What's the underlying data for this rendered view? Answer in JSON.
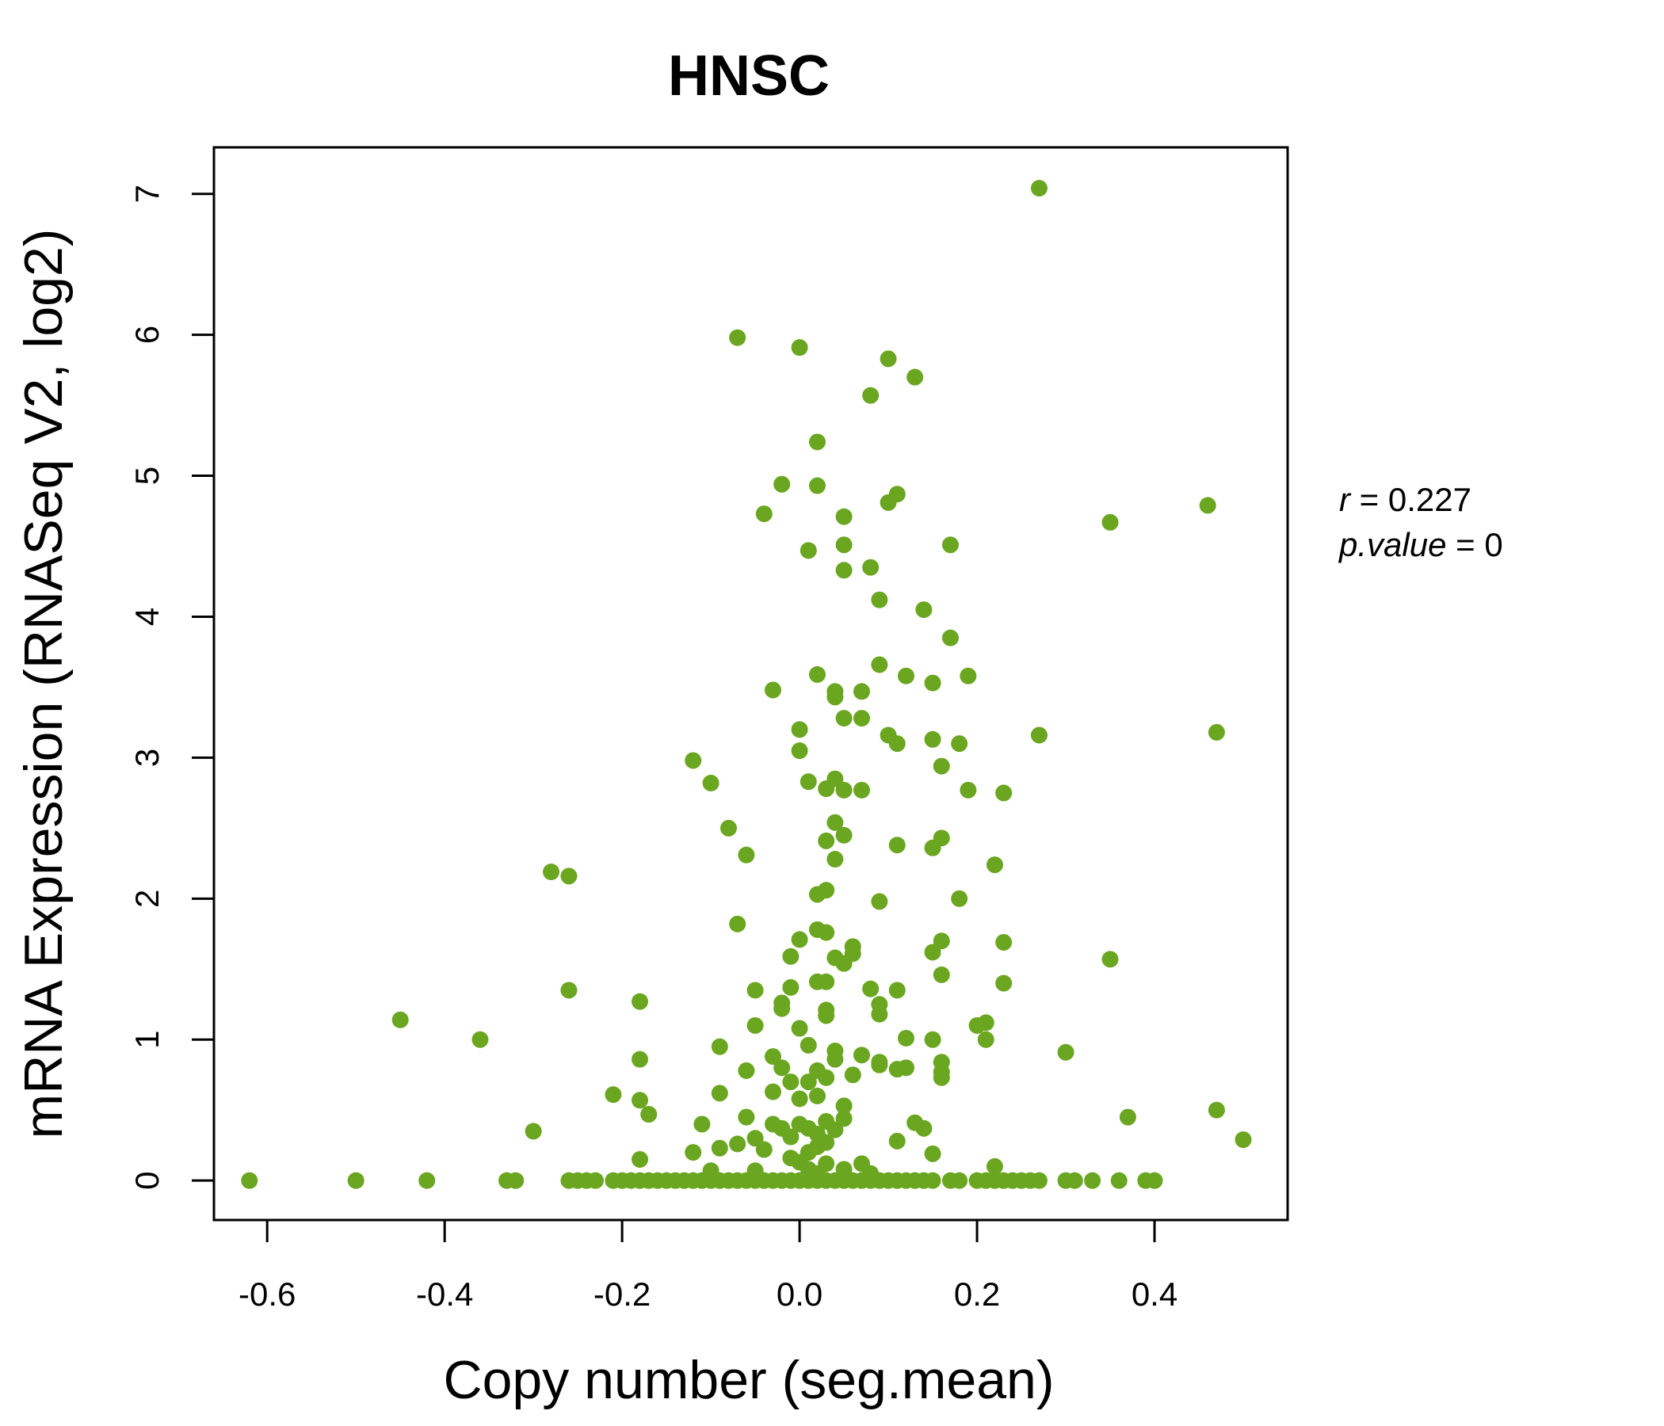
{
  "chart_data": {
    "type": "scatter",
    "title": "HNSC",
    "xlabel": "Copy number (seg.mean)",
    "ylabel": "mRNA Expression (RNASeq V2, log2)",
    "xlim": [
      -0.66,
      0.55
    ],
    "ylim": [
      -0.28,
      7.33
    ],
    "x_ticks": [
      -0.6,
      -0.4,
      -0.2,
      0.0,
      0.2,
      0.4
    ],
    "x_tick_labels": [
      "-0.6",
      "-0.4",
      "-0.2",
      "0.0",
      "0.2",
      "0.4"
    ],
    "y_ticks": [
      0,
      1,
      2,
      3,
      4,
      5,
      6,
      7
    ],
    "y_tick_labels": [
      "0",
      "1",
      "2",
      "3",
      "4",
      "5",
      "6",
      "7"
    ],
    "grid": false,
    "colors": {
      "points": "#6aa620",
      "title": "#6aa620"
    },
    "annotation": {
      "r_label": "r",
      "r_value": "0.227",
      "p_label": "p.value",
      "p_value": "0"
    },
    "series": [
      {
        "points": [
          [
            -0.62,
            0
          ],
          [
            -0.5,
            0
          ],
          [
            -0.42,
            0
          ],
          [
            -0.33,
            0
          ],
          [
            -0.32,
            0
          ],
          [
            -0.26,
            0
          ],
          [
            -0.25,
            0
          ],
          [
            -0.24,
            0
          ],
          [
            -0.23,
            0
          ],
          [
            -0.21,
            0
          ],
          [
            -0.2,
            0
          ],
          [
            -0.19,
            0
          ],
          [
            -0.18,
            0
          ],
          [
            -0.17,
            0
          ],
          [
            -0.16,
            0
          ],
          [
            -0.15,
            0
          ],
          [
            -0.14,
            0
          ],
          [
            -0.13,
            0
          ],
          [
            -0.12,
            0
          ],
          [
            -0.11,
            0
          ],
          [
            -0.1,
            0
          ],
          [
            -0.09,
            0
          ],
          [
            -0.08,
            0
          ],
          [
            -0.07,
            0
          ],
          [
            -0.06,
            0
          ],
          [
            -0.05,
            0
          ],
          [
            -0.04,
            0
          ],
          [
            -0.03,
            0
          ],
          [
            -0.02,
            0
          ],
          [
            -0.01,
            0
          ],
          [
            0.0,
            0
          ],
          [
            0.01,
            0
          ],
          [
            0.02,
            0
          ],
          [
            0.03,
            0
          ],
          [
            0.04,
            0
          ],
          [
            0.05,
            0
          ],
          [
            0.06,
            0
          ],
          [
            0.07,
            0
          ],
          [
            0.08,
            0
          ],
          [
            0.09,
            0
          ],
          [
            0.1,
            0
          ],
          [
            0.11,
            0
          ],
          [
            0.12,
            0
          ],
          [
            0.13,
            0
          ],
          [
            0.14,
            0
          ],
          [
            0.15,
            0
          ],
          [
            0.17,
            0
          ],
          [
            0.18,
            0
          ],
          [
            0.2,
            0
          ],
          [
            0.21,
            0
          ],
          [
            0.22,
            0
          ],
          [
            0.23,
            0
          ],
          [
            0.24,
            0
          ],
          [
            0.25,
            0
          ],
          [
            0.26,
            0
          ],
          [
            0.27,
            0
          ],
          [
            0.3,
            0
          ],
          [
            0.31,
            0
          ],
          [
            0.33,
            0
          ],
          [
            0.36,
            0
          ],
          [
            0.39,
            0
          ],
          [
            0.4,
            0
          ],
          [
            0.27,
            7.04
          ],
          [
            -0.07,
            5.98
          ],
          [
            0.0,
            5.91
          ],
          [
            0.1,
            5.83
          ],
          [
            0.13,
            5.7
          ],
          [
            0.08,
            5.57
          ],
          [
            0.02,
            5.24
          ],
          [
            -0.02,
            4.94
          ],
          [
            0.02,
            4.93
          ],
          [
            0.11,
            4.87
          ],
          [
            0.1,
            4.81
          ],
          [
            0.46,
            4.79
          ],
          [
            -0.04,
            4.73
          ],
          [
            0.05,
            4.71
          ],
          [
            0.35,
            4.67
          ],
          [
            0.05,
            4.51
          ],
          [
            0.17,
            4.51
          ],
          [
            0.01,
            4.47
          ],
          [
            0.08,
            4.35
          ],
          [
            0.05,
            4.33
          ],
          [
            0.09,
            4.12
          ],
          [
            0.14,
            4.05
          ],
          [
            0.17,
            3.85
          ],
          [
            0.09,
            3.66
          ],
          [
            0.02,
            3.59
          ],
          [
            0.12,
            3.58
          ],
          [
            0.19,
            3.58
          ],
          [
            0.15,
            3.53
          ],
          [
            -0.03,
            3.48
          ],
          [
            0.04,
            3.47
          ],
          [
            0.07,
            3.47
          ],
          [
            0.04,
            3.43
          ],
          [
            0.05,
            3.28
          ],
          [
            0.07,
            3.28
          ],
          [
            0.0,
            3.2
          ],
          [
            0.47,
            3.18
          ],
          [
            0.27,
            3.16
          ],
          [
            0.1,
            3.16
          ],
          [
            0.15,
            3.13
          ],
          [
            0.11,
            3.1
          ],
          [
            0.18,
            3.1
          ],
          [
            0.0,
            3.05
          ],
          [
            -0.12,
            2.98
          ],
          [
            0.16,
            2.94
          ],
          [
            0.04,
            2.85
          ],
          [
            0.01,
            2.83
          ],
          [
            -0.1,
            2.82
          ],
          [
            0.03,
            2.78
          ],
          [
            0.05,
            2.77
          ],
          [
            0.07,
            2.77
          ],
          [
            0.19,
            2.77
          ],
          [
            0.23,
            2.75
          ],
          [
            0.04,
            2.54
          ],
          [
            -0.08,
            2.5
          ],
          [
            0.05,
            2.45
          ],
          [
            0.16,
            2.43
          ],
          [
            0.03,
            2.41
          ],
          [
            0.11,
            2.38
          ],
          [
            0.15,
            2.36
          ],
          [
            -0.06,
            2.31
          ],
          [
            0.04,
            2.28
          ],
          [
            0.22,
            2.24
          ],
          [
            -0.28,
            2.19
          ],
          [
            -0.26,
            2.16
          ],
          [
            0.03,
            2.06
          ],
          [
            0.02,
            2.03
          ],
          [
            0.18,
            2.0
          ],
          [
            0.09,
            1.98
          ],
          [
            -0.07,
            1.82
          ],
          [
            0.02,
            1.78
          ],
          [
            0.03,
            1.76
          ],
          [
            0.0,
            1.71
          ],
          [
            0.16,
            1.7
          ],
          [
            0.23,
            1.69
          ],
          [
            0.06,
            1.66
          ],
          [
            0.06,
            1.61
          ],
          [
            0.15,
            1.62
          ],
          [
            -0.01,
            1.59
          ],
          [
            0.04,
            1.58
          ],
          [
            0.05,
            1.54
          ],
          [
            0.35,
            1.57
          ],
          [
            0.16,
            1.46
          ],
          [
            0.02,
            1.41
          ],
          [
            0.03,
            1.41
          ],
          [
            0.23,
            1.4
          ],
          [
            -0.01,
            1.37
          ],
          [
            0.08,
            1.36
          ],
          [
            0.11,
            1.35
          ],
          [
            -0.05,
            1.35
          ],
          [
            -0.26,
            1.35
          ],
          [
            -0.18,
            1.27
          ],
          [
            -0.02,
            1.26
          ],
          [
            0.09,
            1.25
          ],
          [
            -0.02,
            1.22
          ],
          [
            0.03,
            1.21
          ],
          [
            0.03,
            1.17
          ],
          [
            0.09,
            1.18
          ],
          [
            -0.45,
            1.14
          ],
          [
            0.21,
            1.12
          ],
          [
            0.2,
            1.1
          ],
          [
            -0.05,
            1.1
          ],
          [
            0.0,
            1.08
          ],
          [
            -0.36,
            1.0
          ],
          [
            0.12,
            1.01
          ],
          [
            0.15,
            1.0
          ],
          [
            0.21,
            1.0
          ],
          [
            -0.09,
            0.95
          ],
          [
            0.01,
            0.96
          ],
          [
            0.3,
            0.91
          ],
          [
            0.04,
            0.92
          ],
          [
            0.07,
            0.89
          ],
          [
            -0.03,
            0.88
          ],
          [
            -0.18,
            0.86
          ],
          [
            0.04,
            0.86
          ],
          [
            0.09,
            0.84
          ],
          [
            0.16,
            0.84
          ],
          [
            0.09,
            0.82
          ],
          [
            -0.02,
            0.8
          ],
          [
            0.11,
            0.79
          ],
          [
            0.12,
            0.8
          ],
          [
            0.16,
            0.77
          ],
          [
            -0.06,
            0.78
          ],
          [
            0.02,
            0.78
          ],
          [
            0.06,
            0.75
          ],
          [
            0.16,
            0.73
          ],
          [
            0.03,
            0.73
          ],
          [
            -0.01,
            0.7
          ],
          [
            0.01,
            0.7
          ],
          [
            -0.03,
            0.63
          ],
          [
            -0.21,
            0.61
          ],
          [
            -0.09,
            0.62
          ],
          [
            0.02,
            0.6
          ],
          [
            0.0,
            0.58
          ],
          [
            -0.18,
            0.57
          ],
          [
            0.05,
            0.53
          ],
          [
            0.47,
            0.5
          ],
          [
            -0.17,
            0.47
          ],
          [
            0.37,
            0.45
          ],
          [
            -0.06,
            0.45
          ],
          [
            0.05,
            0.44
          ],
          [
            0.03,
            0.42
          ],
          [
            0.13,
            0.41
          ],
          [
            -0.11,
            0.4
          ],
          [
            -0.03,
            0.4
          ],
          [
            0.0,
            0.4
          ],
          [
            -0.02,
            0.37
          ],
          [
            0.01,
            0.37
          ],
          [
            0.04,
            0.36
          ],
          [
            0.14,
            0.37
          ],
          [
            -0.3,
            0.35
          ],
          [
            0.02,
            0.33
          ],
          [
            -0.01,
            0.31
          ],
          [
            -0.05,
            0.3
          ],
          [
            0.11,
            0.28
          ],
          [
            0.5,
            0.29
          ],
          [
            0.03,
            0.27
          ],
          [
            -0.07,
            0.26
          ],
          [
            0.02,
            0.24
          ],
          [
            -0.09,
            0.23
          ],
          [
            -0.04,
            0.22
          ],
          [
            -0.12,
            0.2
          ],
          [
            0.01,
            0.2
          ],
          [
            0.15,
            0.19
          ],
          [
            -0.01,
            0.16
          ],
          [
            -0.18,
            0.15
          ],
          [
            0.0,
            0.13
          ],
          [
            0.03,
            0.12
          ],
          [
            0.07,
            0.12
          ],
          [
            0.22,
            0.1
          ],
          [
            0.05,
            0.08
          ],
          [
            -0.1,
            0.07
          ],
          [
            0.02,
            0.05
          ],
          [
            -0.05,
            0.07
          ],
          [
            0.08,
            0.05
          ],
          [
            0.01,
            0.08
          ]
        ]
      }
    ]
  }
}
